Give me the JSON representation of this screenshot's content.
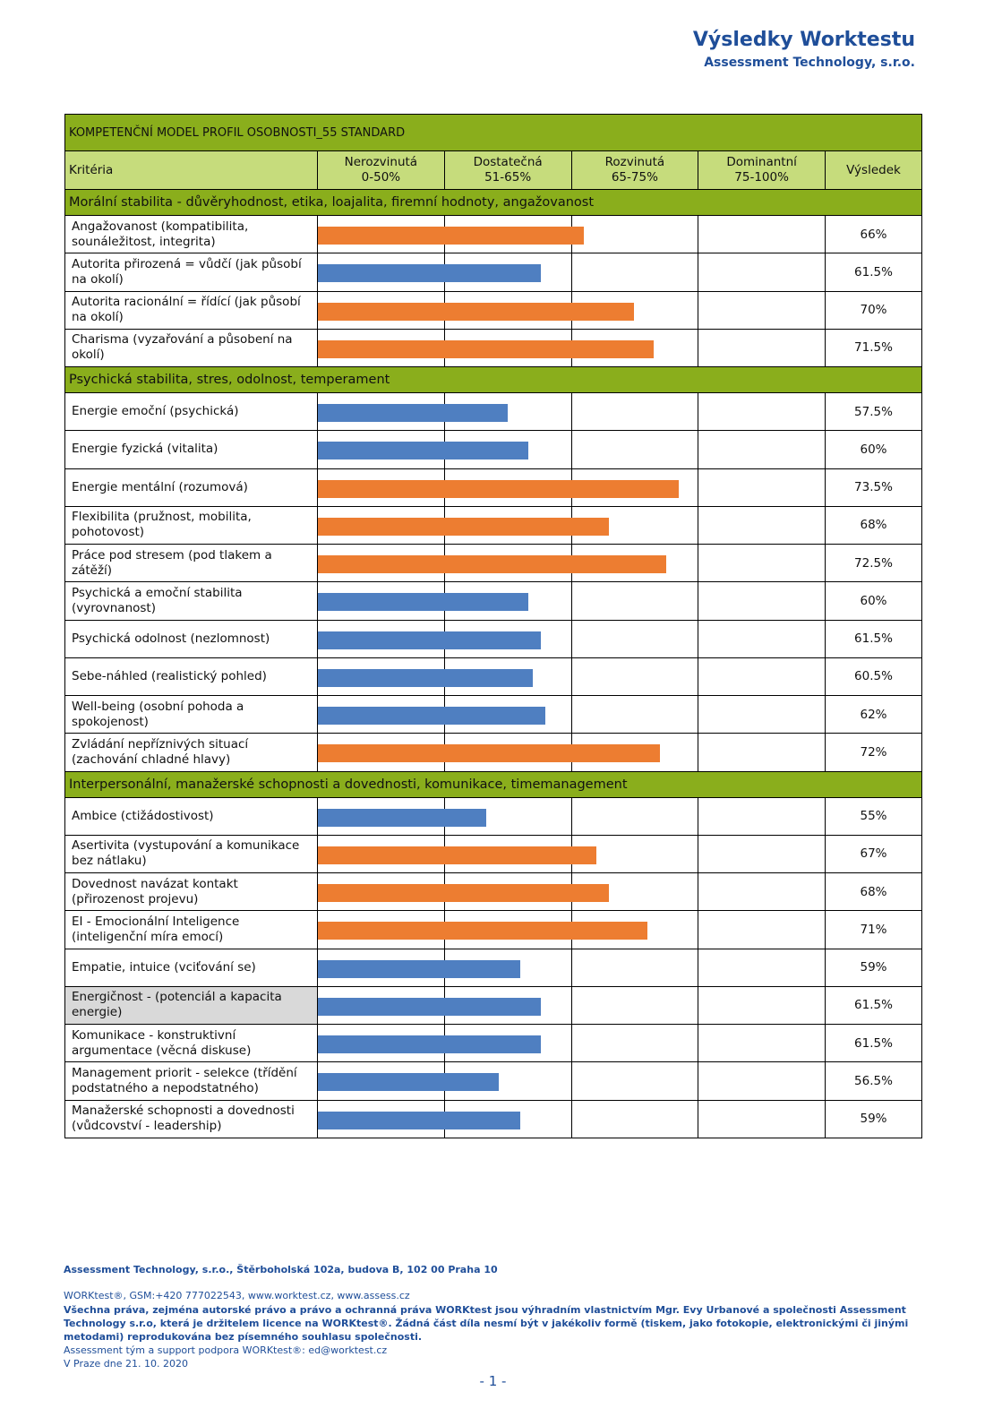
{
  "header": {
    "title": "Výsledky Worktestu",
    "subtitle": "Assessment Technology, s.r.o."
  },
  "table": {
    "title": "KOMPETENČNÍ MODEL PROFIL OSOBNOSTI_55 STANDARD",
    "criteria_label": "Kritéria",
    "result_label": "Výsledek",
    "columns": [
      {
        "name": "Nerozvinutá",
        "range": "0-50%"
      },
      {
        "name": "Dostatečná",
        "range": "51-65%"
      },
      {
        "name": "Rozvinutá",
        "range": "65-75%"
      },
      {
        "name": "Dominantní",
        "range": "75-100%"
      }
    ],
    "xticks": [
      0,
      50,
      65,
      75,
      100
    ],
    "sections": [
      {
        "title": "Morální stabilita - důvěryhodnost, etika, loajalita, firemní hodnoty, angažovanost",
        "rows": [
          {
            "name": "Angažovanost (kompatibilita, sounáležitost, integrita)",
            "value": 66,
            "value_label": "66%",
            "color": "#ed7d31"
          },
          {
            "name": "Autorita přirozená = vůdčí (jak působí na okolí)",
            "value": 61.5,
            "value_label": "61.5%",
            "color": "#4f7fc1"
          },
          {
            "name": "Autorita racionální = řídící (jak působí na okolí)",
            "value": 70,
            "value_label": "70%",
            "color": "#ed7d31"
          },
          {
            "name": "Charisma (vyzařování a působení na okolí)",
            "value": 71.5,
            "value_label": "71.5%",
            "color": "#ed7d31"
          }
        ]
      },
      {
        "title": "Psychická stabilita, stres, odolnost, temperament",
        "rows": [
          {
            "name": "Energie emoční (psychická)",
            "value": 57.5,
            "value_label": "57.5%",
            "color": "#4f7fc1"
          },
          {
            "name": "Energie fyzická (vitalita)",
            "value": 60,
            "value_label": "60%",
            "color": "#4f7fc1"
          },
          {
            "name": "Energie mentální (rozumová)",
            "value": 73.5,
            "value_label": "73.5%",
            "color": "#ed7d31"
          },
          {
            "name": "Flexibilita (pružnost, mobilita, pohotovost)",
            "value": 68,
            "value_label": "68%",
            "color": "#ed7d31"
          },
          {
            "name": "Práce pod stresem (pod tlakem a zátěží)",
            "value": 72.5,
            "value_label": "72.5%",
            "color": "#ed7d31"
          },
          {
            "name": "Psychická a emoční stabilita (vyrovnanost)",
            "value": 60,
            "value_label": "60%",
            "color": "#4f7fc1"
          },
          {
            "name": "Psychická odolnost (nezlomnost)",
            "value": 61.5,
            "value_label": "61.5%",
            "color": "#4f7fc1"
          },
          {
            "name": "Sebe-náhled (realistický pohled)",
            "value": 60.5,
            "value_label": "60.5%",
            "color": "#4f7fc1"
          },
          {
            "name": "Well-being (osobní pohoda a spokojenost)",
            "value": 62,
            "value_label": "62%",
            "color": "#4f7fc1"
          },
          {
            "name": "Zvládání nepříznivých situací (zachování chladné hlavy)",
            "value": 72,
            "value_label": "72%",
            "color": "#ed7d31"
          }
        ]
      },
      {
        "title": "Interpersonální, manažerské schopnosti a dovednosti, komunikace, timemanagement",
        "rows": [
          {
            "name": "Ambice (ctižádostivost)",
            "value": 55,
            "value_label": "55%",
            "color": "#4f7fc1"
          },
          {
            "name": "Asertivita (vystupování a komunikace bez nátlaku)",
            "value": 67,
            "value_label": "67%",
            "color": "#ed7d31"
          },
          {
            "name": "Dovednost navázat kontakt (přirozenost projevu)",
            "value": 68,
            "value_label": "68%",
            "color": "#ed7d31"
          },
          {
            "name": "EI - Emocionální Inteligence (inteligenční míra emocí)",
            "value": 71,
            "value_label": "71%",
            "color": "#ed7d31"
          },
          {
            "name": "Empatie, intuice (vciťování se)",
            "value": 59,
            "value_label": "59%",
            "color": "#4f7fc1"
          },
          {
            "name": "Energičnost - (potenciál a kapacita energie)",
            "value": 61.5,
            "value_label": "61.5%",
            "color": "#4f7fc1",
            "shaded": true
          },
          {
            "name": "Komunikace - konstruktivní argumentace (věcná diskuse)",
            "value": 61.5,
            "value_label": "61.5%",
            "color": "#4f7fc1"
          },
          {
            "name": "Management priorit - selekce (třídění podstatného a nepodstatného)",
            "value": 56.5,
            "value_label": "56.5%",
            "color": "#4f7fc1"
          },
          {
            "name": "Manažerské schopnosti a dovednosti (vůdcovství - leadership)",
            "value": 59,
            "value_label": "59%",
            "color": "#4f7fc1"
          }
        ]
      }
    ]
  },
  "footer": {
    "address": "Assessment Technology, s.r.o., Štěrboholská 102a, budova B, 102 00 Praha 10",
    "contact": "WORKtest®, GSM:+420 777022543, www.worktest.cz, www.assess.cz",
    "rights": "Všechna práva, zejména autorské právo a právo a ochranná práva WORKtest jsou výhradním vlastnictvím Mgr. Evy Urbanové a společnosti Assessment Technology s.r.o, která je držitelem licence na WORKtest®. Žádná část díla nesmí být v jakékoliv formě (tiskem, jako fotokopie, elektronickými či jinými metodami) reprodukována bez písemného souhlasu společnosti.",
    "support": "Assessment tým a support podpora WORKtest®: ed@worktest.cz",
    "date": "V Praze dne 21. 10. 2020",
    "page": "- 1 -"
  }
}
